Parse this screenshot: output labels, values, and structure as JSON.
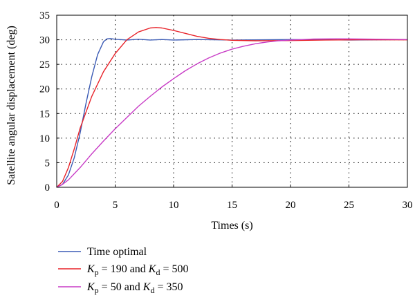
{
  "chart_data": {
    "type": "line",
    "title": "",
    "xlabel": "Times (s)",
    "ylabel": "Satellite angular displacement (deg)",
    "xlim": [
      0,
      30
    ],
    "ylim": [
      0,
      35
    ],
    "xticks": [
      0,
      5,
      10,
      15,
      20,
      25,
      30
    ],
    "yticks": [
      0,
      5,
      10,
      15,
      20,
      25,
      30,
      35
    ],
    "grid": true,
    "legend_position": "bottom",
    "series": [
      {
        "name": "Time optimal",
        "legend_parts": [
          {
            "t": "Time optimal"
          }
        ],
        "color": "#3b5bb5",
        "x": [
          0,
          0.5,
          1,
          1.5,
          2,
          2.5,
          3,
          3.5,
          4,
          4.3,
          4.6,
          5,
          6,
          7,
          8,
          9,
          10,
          12,
          15,
          20,
          25,
          30
        ],
        "y": [
          0,
          0.6,
          2.5,
          6,
          11,
          17,
          22.5,
          27,
          29.6,
          30.2,
          30.25,
          30.1,
          29.95,
          30.1,
          29.95,
          30.05,
          29.95,
          30.05,
          29.95,
          30.05,
          29.95,
          30.05
        ]
      },
      {
        "name": "Kp = 190 and Kd = 500",
        "legend_parts": [
          {
            "t": "K",
            "i": true
          },
          {
            "t": "p",
            "sub": true
          },
          {
            "t": " = 190 and "
          },
          {
            "t": "K",
            "i": true
          },
          {
            "t": "d",
            "sub": true
          },
          {
            "t": " = 500"
          }
        ],
        "color": "#e8232a",
        "x": [
          0,
          0.5,
          1,
          1.5,
          2,
          3,
          4,
          5,
          6,
          7,
          8,
          8.5,
          9,
          10,
          11,
          12,
          13,
          14,
          15,
          17,
          20,
          23,
          26,
          30
        ],
        "y": [
          0,
          1.2,
          4,
          7.8,
          12,
          18.5,
          23.5,
          27.2,
          30,
          31.6,
          32.4,
          32.5,
          32.4,
          31.9,
          31.3,
          30.7,
          30.3,
          30.05,
          29.9,
          29.8,
          29.85,
          29.95,
          30.0,
          29.98
        ]
      },
      {
        "name": "Kp = 50 and Kd = 350",
        "legend_parts": [
          {
            "t": "K",
            "i": true
          },
          {
            "t": "p",
            "sub": true
          },
          {
            "t": " = 50 and "
          },
          {
            "t": "K",
            "i": true
          },
          {
            "t": "d",
            "sub": true
          },
          {
            "t": " = 350"
          }
        ],
        "color": "#c83cc6",
        "x": [
          0,
          0.5,
          1,
          2,
          3,
          4,
          5,
          6,
          7,
          8,
          9,
          10,
          11,
          12,
          13,
          14,
          15,
          16,
          17,
          18,
          19,
          20,
          22,
          24,
          26,
          28,
          30
        ],
        "y": [
          0,
          0.6,
          1.5,
          4,
          6.8,
          9.4,
          11.9,
          14.2,
          16.5,
          18.5,
          20.4,
          22.1,
          23.7,
          25.1,
          26.3,
          27.3,
          28.1,
          28.7,
          29.2,
          29.55,
          29.8,
          29.95,
          30.15,
          30.2,
          30.15,
          30.1,
          30.05
        ]
      }
    ]
  }
}
